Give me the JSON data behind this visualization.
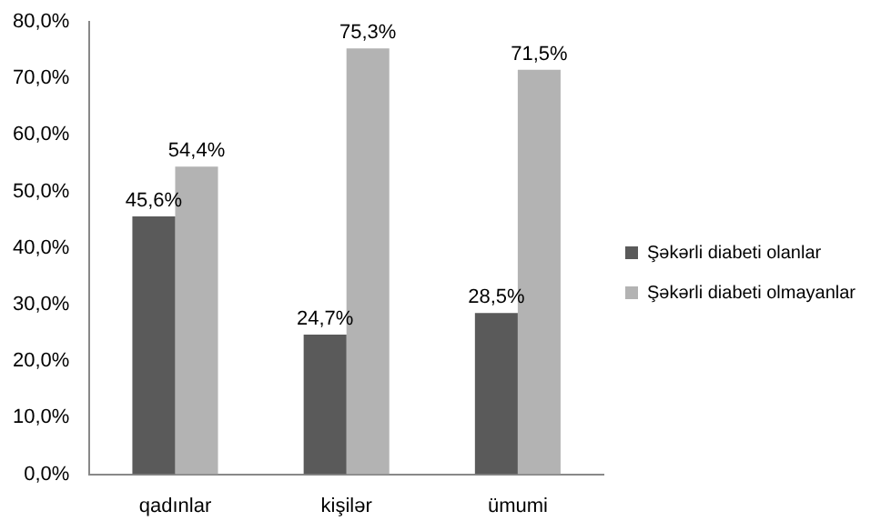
{
  "chart_data": {
    "type": "bar",
    "categories": [
      "qadınlar",
      "kişilər",
      "ümumi"
    ],
    "series": [
      {
        "name": "Şəkərli diabeti olanlar",
        "color": "#5a5a5a",
        "values": [
          45.6,
          24.7,
          28.5
        ],
        "value_labels": [
          "45,6%",
          "24,7%",
          "28,5%"
        ]
      },
      {
        "name": "Şəkərli diabeti olmayanlar",
        "color": "#b3b3b3",
        "values": [
          54.4,
          75.3,
          71.5
        ],
        "value_labels": [
          "54,4%",
          "75,3%",
          "71,5%"
        ]
      }
    ],
    "ylim": [
      0,
      80
    ],
    "yticks": [
      {
        "value": 0,
        "label": "0,0%"
      },
      {
        "value": 10,
        "label": "10,0%"
      },
      {
        "value": 20,
        "label": "20,0%"
      },
      {
        "value": 30,
        "label": "30,0%"
      },
      {
        "value": 40,
        "label": "40,0%"
      },
      {
        "value": 50,
        "label": "50,0%"
      },
      {
        "value": 60,
        "label": "60,0%"
      },
      {
        "value": 70,
        "label": "70,0%"
      },
      {
        "value": 80,
        "label": "80,0%"
      }
    ],
    "grid": false,
    "legend": "right"
  }
}
